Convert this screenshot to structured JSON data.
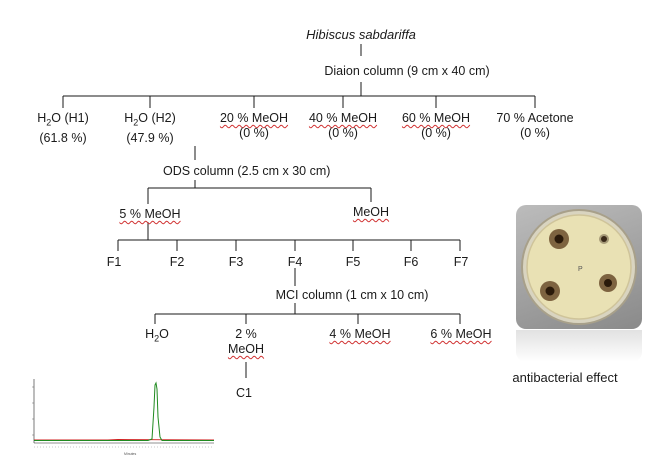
{
  "root": {
    "species": "Hibiscus sabdariffa"
  },
  "diaion": {
    "label": "Diaion column (9 cm x 40 cm)"
  },
  "fractions": [
    {
      "line1": "H",
      "sub": "2",
      "rest": "O (H1)",
      "pct": "(61.8 %)"
    },
    {
      "line1": "H",
      "sub": "2",
      "rest": "O (H2)",
      "pct": "(47.9 %)"
    },
    {
      "line1": "20 % MeOH",
      "pct": "(0 %)"
    },
    {
      "line1": "40 % MeOH",
      "pct": "(0 %)"
    },
    {
      "line1": "60 % MeOH",
      "pct": "(0 %)"
    },
    {
      "line1": "70 % Acetone",
      "pct": "(0 %)"
    }
  ],
  "ods": {
    "label": "ODS column (2.5 cm x 30 cm)",
    "left": "5 % MeOH",
    "right": "MeOH"
  },
  "f_fractions": [
    "F1",
    "F2",
    "F3",
    "F4",
    "F5",
    "F6",
    "F7"
  ],
  "mci": {
    "label": "MCI column (1 cm x 10 cm)"
  },
  "mci_fractions": {
    "h2o_main": "H",
    "h2o_sub": "2",
    "h2o_rest": "O",
    "two_pct": "2 %",
    "two_meoh": "MeOH",
    "four": "4 % MeOH",
    "six": "6 % MeOH"
  },
  "compound": "C1",
  "caption": "antibacterial effect",
  "plate_labels": {
    "center": "P"
  },
  "colors": {
    "line": "#1a1a1a",
    "squiggle": "#d03030",
    "trace_green": "#1f8a1f",
    "trace_red": "#d02020",
    "agar": "#e9e1b4",
    "halo": "#5a3a1a"
  }
}
